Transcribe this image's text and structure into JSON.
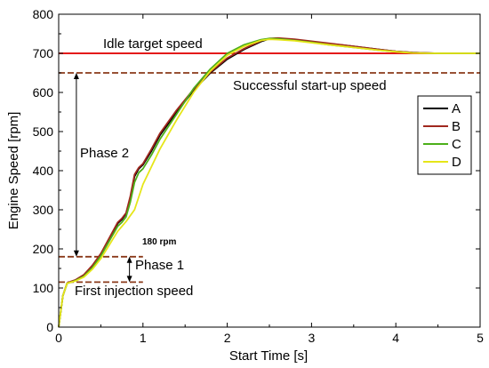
{
  "chart_data": {
    "type": "line",
    "xlabel": "Start Time [s]",
    "ylabel": "Engine Speed [rpm]",
    "xlim": [
      0,
      5
    ],
    "ylim": [
      0,
      800
    ],
    "xticks": [
      "0",
      "1",
      "2",
      "3",
      "4",
      "5"
    ],
    "yticks": [
      "0",
      "100",
      "200",
      "300",
      "400",
      "500",
      "600",
      "700",
      "800"
    ],
    "grid": false,
    "legend_position": "right",
    "series": [
      {
        "name": "A",
        "color": "#000000",
        "x": [
          0,
          0.05,
          0.1,
          0.15,
          0.2,
          0.3,
          0.4,
          0.5,
          0.6,
          0.7,
          0.75,
          0.8,
          0.85,
          0.9,
          0.95,
          1.0,
          1.1,
          1.2,
          1.4,
          1.6,
          1.8,
          2.0,
          2.2,
          2.4,
          2.5,
          2.6,
          2.8,
          3.0,
          3.2,
          3.5,
          3.8,
          4.0,
          4.2,
          4.5,
          5.0
        ],
        "y": [
          0,
          80,
          112,
          116,
          120,
          133,
          155,
          185,
          225,
          265,
          275,
          290,
          330,
          385,
          405,
          415,
          450,
          490,
          550,
          605,
          650,
          685,
          710,
          730,
          737,
          738,
          735,
          730,
          725,
          718,
          710,
          705,
          702,
          700,
          700
        ]
      },
      {
        "name": "B",
        "color": "#a0281e",
        "x": [
          0,
          0.05,
          0.1,
          0.15,
          0.2,
          0.3,
          0.4,
          0.5,
          0.6,
          0.7,
          0.75,
          0.8,
          0.85,
          0.9,
          0.95,
          1.0,
          1.1,
          1.2,
          1.4,
          1.6,
          1.8,
          2.0,
          2.2,
          2.4,
          2.5,
          2.6,
          2.8,
          3.0,
          3.2,
          3.5,
          3.8,
          4.0,
          4.2,
          4.5,
          5.0
        ],
        "y": [
          0,
          80,
          113,
          117,
          121,
          134,
          158,
          188,
          228,
          268,
          278,
          292,
          335,
          390,
          408,
          418,
          455,
          495,
          555,
          608,
          652,
          688,
          712,
          732,
          738,
          739,
          736,
          731,
          726,
          718,
          710,
          705,
          702,
          700,
          700
        ]
      },
      {
        "name": "C",
        "color": "#4caf1a",
        "x": [
          0,
          0.05,
          0.1,
          0.15,
          0.2,
          0.3,
          0.4,
          0.5,
          0.6,
          0.7,
          0.75,
          0.8,
          0.85,
          0.9,
          0.95,
          1.0,
          1.1,
          1.2,
          1.4,
          1.6,
          1.8,
          2.0,
          2.2,
          2.4,
          2.5,
          2.6,
          2.8,
          3.0,
          3.2,
          3.5,
          3.8,
          4.0,
          4.2,
          4.5,
          5.0
        ],
        "y": [
          0,
          80,
          112,
          115,
          119,
          130,
          152,
          182,
          220,
          258,
          268,
          282,
          320,
          370,
          395,
          405,
          440,
          480,
          545,
          610,
          660,
          700,
          722,
          735,
          738,
          737,
          733,
          728,
          722,
          715,
          708,
          704,
          701,
          700,
          700
        ]
      },
      {
        "name": "D",
        "color": "#e6e619",
        "x": [
          0,
          0.05,
          0.1,
          0.15,
          0.2,
          0.3,
          0.4,
          0.5,
          0.6,
          0.7,
          0.8,
          0.9,
          1.0,
          1.1,
          1.2,
          1.4,
          1.6,
          1.8,
          2.0,
          2.2,
          2.4,
          2.5,
          2.6,
          2.8,
          3.0,
          3.2,
          3.5,
          3.8,
          4.0,
          4.2,
          4.5,
          5.0
        ],
        "y": [
          0,
          80,
          112,
          115,
          118,
          128,
          148,
          175,
          210,
          245,
          270,
          300,
          365,
          410,
          455,
          530,
          600,
          655,
          695,
          718,
          733,
          736,
          735,
          732,
          727,
          722,
          715,
          708,
          704,
          701,
          700,
          700
        ]
      }
    ],
    "reference_lines": [
      {
        "y": 700,
        "x0": 0,
        "x1": 5,
        "color": "#e41a1a",
        "style": "solid"
      },
      {
        "y": 650,
        "x0": 0,
        "x1": 5,
        "color": "#8b3a1a",
        "style": "dashed"
      },
      {
        "y": 180,
        "x0": 0,
        "x1": 1,
        "color": "#8b3a1a",
        "style": "dashed"
      },
      {
        "y": 115,
        "x0": 0,
        "x1": 1,
        "color": "#8b3a1a",
        "style": "dashed"
      }
    ],
    "annotations": {
      "idle": "Idle target speed",
      "success": "Successful start-up speed",
      "phase2": "Phase 2",
      "phase1": "Phase 1",
      "rpm180": "180 rpm",
      "first_injection": "First injection speed"
    }
  }
}
